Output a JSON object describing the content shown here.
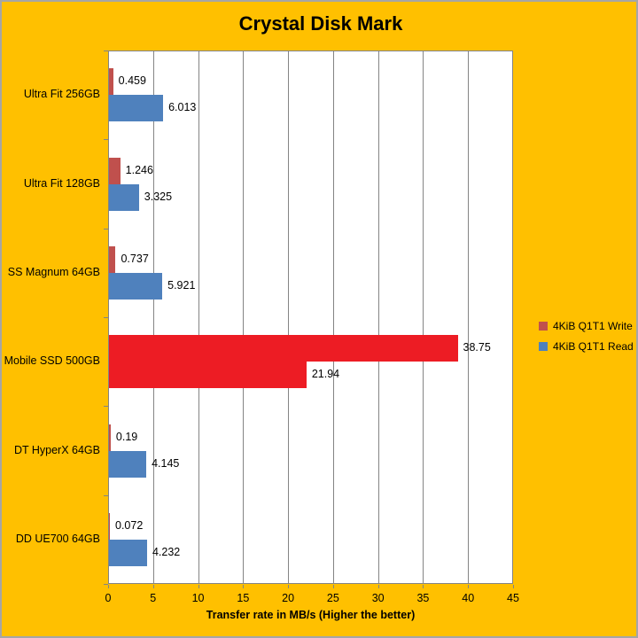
{
  "chart": {
    "background_color": "#FFC000",
    "outer_border_color": "#A6A6A6",
    "plot_background_color": "#FFFFFF",
    "gridline_color": "#848484",
    "text_color": "#000000"
  },
  "chart_data": {
    "type": "bar",
    "orientation": "horizontal",
    "title": "Crystal Disk Mark",
    "xlabel": "Transfer rate in MB/s (Higher the better)",
    "ylabel": "",
    "xlim": [
      0,
      45
    ],
    "xticks": [
      0,
      5,
      10,
      15,
      20,
      25,
      30,
      35,
      40,
      45
    ],
    "grid": true,
    "legend_position": "right",
    "categories": [
      "Ultra Fit 256GB",
      "Ultra Fit 128GB",
      "SS Magnum 64GB",
      "Mobile SSD 500GB",
      "DT HyperX 64GB",
      "DD UE700 64GB"
    ],
    "highlighted_category": "Mobile SSD 500GB",
    "highlight_color": "#ED1C24",
    "series": [
      {
        "name": "4KiB Q1T1 Write",
        "color": "#C0504D",
        "values": [
          0.459,
          1.246,
          0.737,
          38.75,
          0.19,
          0.072
        ],
        "labels": [
          "0.459",
          "1.246",
          "0.737",
          "38.75",
          "0.19",
          "0.072"
        ],
        "point_colors": {
          "3": "#ED1C24"
        }
      },
      {
        "name": "4KiB Q1T1 Read",
        "color": "#4F81BD",
        "values": [
          6.013,
          3.325,
          5.921,
          21.94,
          4.145,
          4.232
        ],
        "labels": [
          "6.013",
          "3.325",
          "5.921",
          "21.94",
          "4.145",
          "4.232"
        ],
        "point_colors": {
          "3": "#ED1C24"
        }
      }
    ]
  }
}
